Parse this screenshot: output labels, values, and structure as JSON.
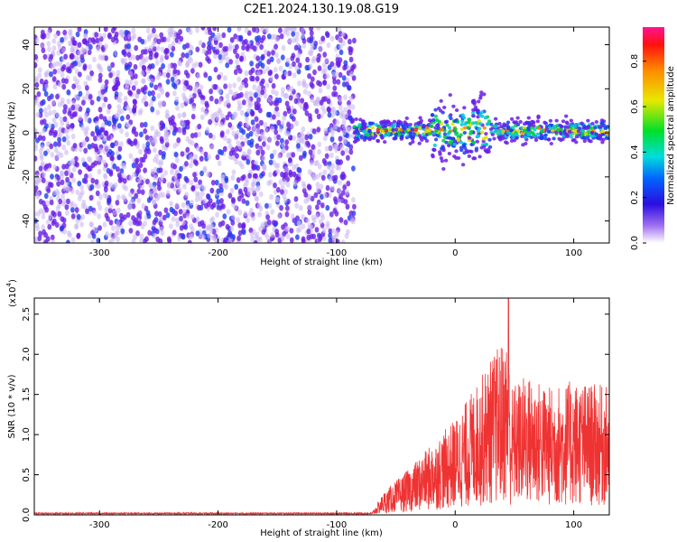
{
  "title": "C2E1.2024.130.19.08.G19",
  "colors": {
    "snr_line": "#ef3333",
    "spectrum_weak": "#c8b4f0",
    "spectrum_mid": "#6a1ee6",
    "spectrum_strong": "#1f3cf0"
  },
  "chart_data": [
    {
      "type": "heatmap",
      "name": "spectrogram",
      "xlabel": "Height of straight line (km)",
      "ylabel": "Frequency (Hz)",
      "xlim": [
        -355,
        130
      ],
      "ylim": [
        -50,
        48
      ],
      "xticks": [
        -300,
        -200,
        -100,
        0,
        100
      ],
      "yticks": [
        -40,
        -20,
        0,
        20,
        40
      ],
      "colorbar": {
        "label": "Normalized spectral amplitude",
        "range": [
          0.0,
          0.95
        ],
        "ticks": [
          "0.0",
          "0.2",
          "0.4",
          "0.6",
          "0.8"
        ],
        "tick_values": [
          0.0,
          0.2,
          0.4,
          0.6,
          0.8
        ]
      },
      "regions": [
        {
          "x": [
            -355,
            -85
          ],
          "description": "noise",
          "amplitude": 0.15
        },
        {
          "x": [
            -85,
            130
          ],
          "freq_center": 1,
          "amplitude_peak": 0.8
        }
      ]
    },
    {
      "type": "line",
      "name": "snr",
      "xlabel": "Height of straight line (km)",
      "ylabel": "SNR (10 * v/v)",
      "multiplier_label": "(x10",
      "multiplier_exp": "4",
      "multiplier_close": ")",
      "xlim": [
        -355,
        130
      ],
      "ylim": [
        0,
        2.7
      ],
      "xticks": [
        -300,
        -200,
        -100,
        0,
        100
      ],
      "yticks": [
        "0.0",
        "0.5",
        "1.0",
        "1.5",
        "2.0",
        "2.5"
      ],
      "ytick_values": [
        0.0,
        0.5,
        1.0,
        1.5,
        2.0,
        2.5
      ],
      "envelope": [
        {
          "x": -355,
          "y": 0.02
        },
        {
          "x": -70,
          "y": 0.02
        },
        {
          "x": -60,
          "y": 0.18
        },
        {
          "x": -40,
          "y": 0.35
        },
        {
          "x": -20,
          "y": 0.55
        },
        {
          "x": 0,
          "y": 0.75
        },
        {
          "x": 20,
          "y": 1.05
        },
        {
          "x": 35,
          "y": 1.3
        },
        {
          "x": 45,
          "y": 1.4
        },
        {
          "x": 46,
          "y": 1.0
        },
        {
          "x": 60,
          "y": 1.1
        },
        {
          "x": 80,
          "y": 1.0
        },
        {
          "x": 100,
          "y": 1.05
        },
        {
          "x": 130,
          "y": 1.0
        }
      ],
      "peak": {
        "x": 45,
        "y": 2.7
      }
    }
  ]
}
